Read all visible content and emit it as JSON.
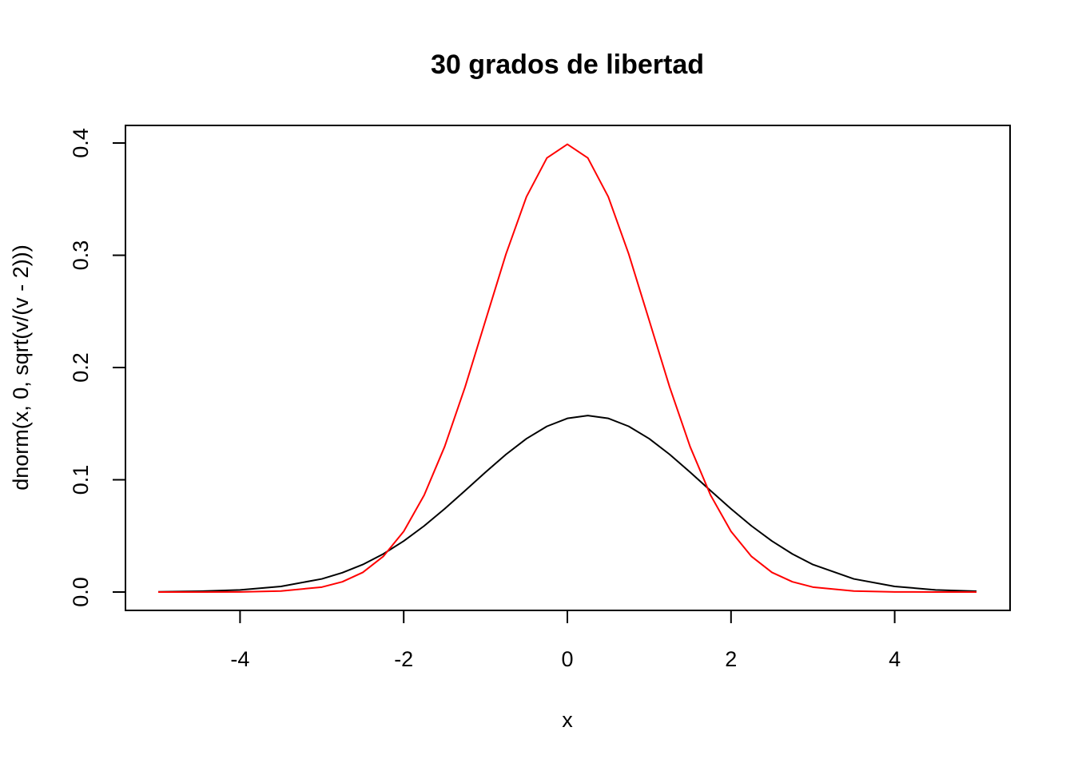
{
  "chart_data": {
    "type": "line",
    "title": "30 grados de libertad",
    "xlabel": "x",
    "ylabel": "dnorm(x, 0, sqrt(v/(v - 2)))",
    "xlim": [
      -5,
      5
    ],
    "ylim": [
      0,
      0.4
    ],
    "x_ticks": [
      -4,
      -2,
      0,
      2,
      4
    ],
    "x_tick_labels": [
      "-4",
      "-2",
      "0",
      "2",
      "4"
    ],
    "y_ticks": [
      0.0,
      0.1,
      0.2,
      0.3,
      0.4
    ],
    "y_tick_labels": [
      "0.0",
      "0.1",
      "0.2",
      "0.3",
      "0.4"
    ],
    "grid": false,
    "legend": "none",
    "series": [
      {
        "color": "#000000",
        "x": [
          -5,
          -4.5,
          -4,
          -3.5,
          -3,
          -2.75,
          -2.5,
          -2.25,
          -2,
          -1.75,
          -1.5,
          -1.25,
          -1,
          -0.75,
          -0.5,
          -0.25,
          0,
          0.25,
          0.5,
          0.75,
          1,
          1.25,
          1.5,
          1.75,
          2,
          2.25,
          2.5,
          2.75,
          3,
          3.5,
          4,
          4.5,
          5
        ],
        "y": [
          0.0002,
          0.0007,
          0.0019,
          0.005,
          0.0117,
          0.0172,
          0.0245,
          0.0339,
          0.0454,
          0.0589,
          0.0741,
          0.0903,
          0.1068,
          0.1226,
          0.1366,
          0.1476,
          0.1547,
          0.1572,
          0.1547,
          0.1476,
          0.1366,
          0.1226,
          0.1068,
          0.0903,
          0.0741,
          0.0589,
          0.0454,
          0.0339,
          0.0245,
          0.0117,
          0.005,
          0.0019,
          0.0007
        ]
      },
      {
        "color": "#ff0000",
        "x": [
          -5,
          -4.5,
          -4,
          -3.5,
          -3,
          -2.75,
          -2.5,
          -2.25,
          -2,
          -1.75,
          -1.5,
          -1.25,
          -1,
          -0.75,
          -0.5,
          -0.25,
          0,
          0.25,
          0.5,
          0.75,
          1,
          1.25,
          1.5,
          1.75,
          2,
          2.25,
          2.5,
          2.75,
          3,
          3.5,
          4,
          4.5,
          5
        ],
        "y": [
          0.0,
          0.0,
          0.0001,
          0.0009,
          0.0044,
          0.0091,
          0.0175,
          0.0317,
          0.054,
          0.0863,
          0.1295,
          0.1826,
          0.242,
          0.3011,
          0.3521,
          0.3867,
          0.3989,
          0.3867,
          0.3521,
          0.3011,
          0.242,
          0.1826,
          0.1295,
          0.0863,
          0.054,
          0.0317,
          0.0175,
          0.0091,
          0.0044,
          0.0009,
          0.0001,
          0.0,
          0.0
        ]
      }
    ]
  }
}
